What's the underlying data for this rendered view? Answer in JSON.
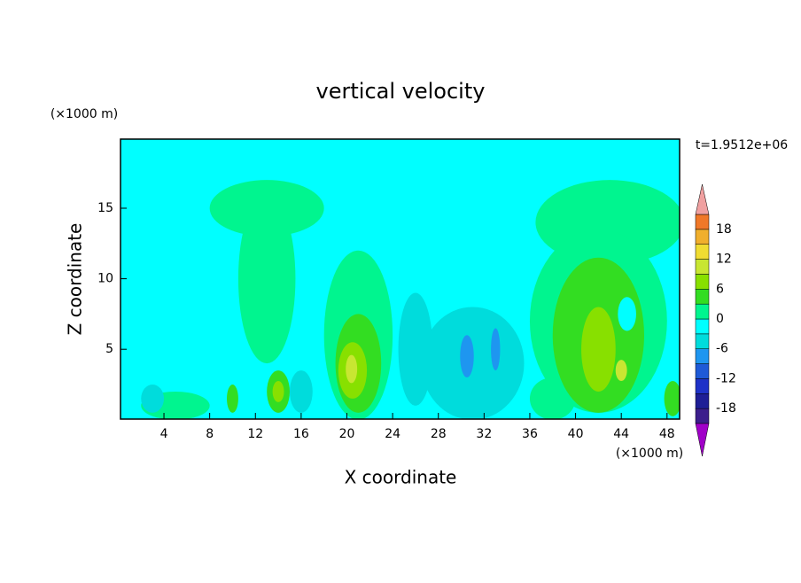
{
  "chart_data": {
    "type": "contour",
    "title": "vertical velocity",
    "x_label": "X coordinate",
    "y_label": "Z coordinate",
    "x_unit": "(×1000 m)",
    "y_unit": "(×1000 m)",
    "time_label": "t=1.9512e+06",
    "xlim": [
      0.2,
      49.1
    ],
    "xticks": [
      4,
      8,
      12,
      16,
      20,
      24,
      28,
      32,
      36,
      40,
      44,
      48
    ],
    "ylim": [
      0.05,
      19.9
    ],
    "yticks": [
      5,
      10,
      15
    ],
    "background_value": -1,
    "features": [
      {
        "x": 13,
        "z": 15,
        "width": 10,
        "height": 4,
        "value": 1
      },
      {
        "x": 13,
        "z": 10,
        "width": 5,
        "height": 12,
        "value": 1
      },
      {
        "x": 21,
        "z": 6,
        "width": 6,
        "height": 12,
        "value": 1
      },
      {
        "x": 43,
        "z": 14,
        "width": 13,
        "height": 6,
        "value": 1
      },
      {
        "x": 42,
        "z": 7,
        "width": 12,
        "height": 13,
        "value": 1
      },
      {
        "x": 5,
        "z": 1,
        "width": 6,
        "height": 2,
        "value": 1
      },
      {
        "x": 38,
        "z": 1.5,
        "width": 4,
        "height": 3,
        "value": 1
      },
      {
        "x": 31,
        "z": 4,
        "width": 9,
        "height": 8,
        "value": -4
      },
      {
        "x": 26,
        "z": 5,
        "width": 3,
        "height": 8,
        "value": -4
      },
      {
        "x": 3,
        "z": 1.5,
        "width": 2,
        "height": 2,
        "value": -4
      },
      {
        "x": 16,
        "z": 2,
        "width": 2,
        "height": 3,
        "value": -4
      },
      {
        "x": 30.5,
        "z": 4.5,
        "width": 1.2,
        "height": 3,
        "value": -9
      },
      {
        "x": 33,
        "z": 5,
        "width": 0.8,
        "height": 3,
        "value": -9
      },
      {
        "x": 21,
        "z": 4,
        "width": 4,
        "height": 7,
        "value": 4
      },
      {
        "x": 20.5,
        "z": 3.5,
        "width": 2.5,
        "height": 4,
        "value": 7
      },
      {
        "x": 20.4,
        "z": 3.6,
        "width": 1,
        "height": 2,
        "value": 10
      },
      {
        "x": 42,
        "z": 6,
        "width": 8,
        "height": 11,
        "value": 4
      },
      {
        "x": 42,
        "z": 5,
        "width": 3,
        "height": 6,
        "value": 7
      },
      {
        "x": 44,
        "z": 3.5,
        "width": 1,
        "height": 1.5,
        "value": 10
      },
      {
        "x": 44.5,
        "z": 7.5,
        "width": 1.6,
        "height": 2.4,
        "value": -1
      },
      {
        "x": 10,
        "z": 1.5,
        "width": 1,
        "height": 2,
        "value": 4
      },
      {
        "x": 14,
        "z": 2,
        "width": 2,
        "height": 3,
        "value": 4
      },
      {
        "x": 14,
        "z": 2,
        "width": 1,
        "height": 1.5,
        "value": 7
      },
      {
        "x": 48.5,
        "z": 1.5,
        "width": 1.5,
        "height": 2.5,
        "value": 4
      }
    ],
    "colorbar_levels": [
      -21,
      -18,
      -15,
      -12,
      -9,
      -6,
      -3,
      0,
      3,
      6,
      9,
      12,
      15,
      18,
      21
    ],
    "colorbar_ticks": [
      -18,
      -12,
      -6,
      0,
      6,
      12,
      18
    ],
    "colorbar_colors": [
      "#a000c8",
      "#3c1e8c",
      "#1e1e96",
      "#1e32c8",
      "#1e5ad7",
      "#1e96f0",
      "#00dcdc",
      "#00ffff",
      "#00f58f",
      "#33dd22",
      "#88e000",
      "#c8e632",
      "#f0dc32",
      "#f0af2d",
      "#f07828",
      "#f03c28",
      "#f0a0a0"
    ]
  }
}
